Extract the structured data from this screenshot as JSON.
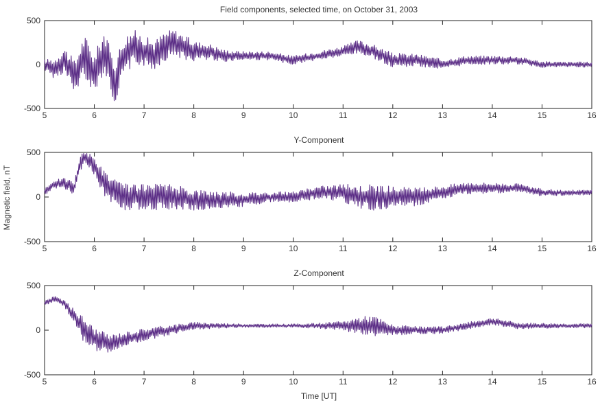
{
  "figure_title": "Field components, selected time, on October 31, 2003",
  "ylabel": "Magnetic field, nT",
  "xlabel": "Time [UT]",
  "colors": {
    "trace": "#5b2d86",
    "axes": "#222222"
  },
  "chart_data": [
    {
      "type": "line",
      "title": "Field components, selected time, on October 31, 2003",
      "xlim": [
        5,
        16
      ],
      "ylim": [
        -500,
        500
      ],
      "xticks": [
        "5",
        "6",
        "7",
        "8",
        "9",
        "10",
        "11",
        "12",
        "13",
        "14",
        "15",
        "16"
      ],
      "yticks": [
        "500",
        "0",
        "-500"
      ],
      "series": [
        {
          "x": [
            5.0,
            5.2,
            5.4,
            5.6,
            5.8,
            6.0,
            6.2,
            6.4,
            6.6,
            6.8,
            7.0,
            7.2,
            7.4,
            7.6,
            7.8,
            8.0,
            8.3,
            8.6,
            9.0,
            9.5,
            10.0,
            10.5,
            11.0,
            11.3,
            11.6,
            12.0,
            12.5,
            13.0,
            13.5,
            14.0,
            14.5,
            15.0,
            15.5,
            16.0
          ],
          "y": [
            0,
            -50,
            50,
            -150,
            100,
            -100,
            150,
            -200,
            100,
            200,
            150,
            100,
            200,
            250,
            200,
            150,
            150,
            100,
            100,
            100,
            50,
            100,
            150,
            200,
            150,
            50,
            50,
            0,
            50,
            50,
            50,
            0,
            0,
            0
          ],
          "amplitude": [
            60,
            120,
            150,
            200,
            250,
            220,
            250,
            250,
            230,
            200,
            180,
            170,
            170,
            160,
            140,
            120,
            90,
            70,
            50,
            50,
            50,
            50,
            60,
            80,
            80,
            80,
            70,
            60,
            50,
            50,
            45,
            35,
            30,
            30
          ]
        }
      ]
    },
    {
      "type": "line",
      "title": "Y-Component",
      "xlim": [
        5,
        16
      ],
      "ylim": [
        -500,
        500
      ],
      "xticks": [
        "5",
        "6",
        "7",
        "8",
        "9",
        "10",
        "11",
        "12",
        "13",
        "14",
        "15",
        "16"
      ],
      "yticks": [
        "500",
        "0",
        "-500"
      ],
      "series": [
        {
          "x": [
            5.0,
            5.2,
            5.4,
            5.6,
            5.7,
            5.8,
            6.0,
            6.2,
            6.4,
            6.6,
            7.0,
            7.5,
            8.0,
            8.5,
            9.0,
            9.5,
            10.0,
            10.5,
            11.0,
            11.3,
            11.6,
            12.0,
            12.5,
            13.0,
            13.5,
            14.0,
            14.5,
            15.0,
            15.5,
            16.0
          ],
          "y": [
            50,
            150,
            150,
            100,
            350,
            450,
            350,
            150,
            50,
            0,
            0,
            0,
            -30,
            -30,
            -30,
            0,
            0,
            50,
            50,
            0,
            0,
            0,
            0,
            50,
            100,
            100,
            100,
            50,
            50,
            50
          ],
          "amplitude": [
            40,
            50,
            60,
            80,
            80,
            80,
            100,
            150,
            150,
            150,
            140,
            150,
            120,
            100,
            80,
            60,
            60,
            70,
            100,
            130,
            150,
            120,
            100,
            80,
            70,
            60,
            50,
            40,
            30,
            30
          ]
        }
      ]
    },
    {
      "type": "line",
      "title": "Z-Component",
      "xlim": [
        5,
        16
      ],
      "ylim": [
        -500,
        500
      ],
      "xticks": [
        "5",
        "6",
        "7",
        "8",
        "9",
        "10",
        "11",
        "12",
        "13",
        "14",
        "15",
        "16"
      ],
      "yticks": [
        "500",
        "0",
        "-500"
      ],
      "series": [
        {
          "x": [
            5.0,
            5.2,
            5.4,
            5.6,
            5.8,
            6.0,
            6.3,
            6.6,
            7.0,
            7.5,
            8.0,
            8.5,
            9.0,
            9.5,
            10.0,
            10.5,
            11.0,
            11.3,
            11.6,
            12.0,
            12.5,
            13.0,
            13.5,
            14.0,
            14.5,
            15.0,
            15.5,
            16.0
          ],
          "y": [
            300,
            350,
            300,
            150,
            0,
            -100,
            -150,
            -100,
            -50,
            0,
            50,
            50,
            50,
            50,
            50,
            50,
            50,
            50,
            50,
            0,
            0,
            0,
            50,
            100,
            50,
            50,
            50,
            50
          ],
          "amplitude": [
            30,
            30,
            40,
            80,
            150,
            130,
            100,
            80,
            70,
            60,
            40,
            30,
            20,
            20,
            20,
            30,
            50,
            100,
            120,
            60,
            40,
            40,
            40,
            40,
            35,
            30,
            25,
            25
          ]
        }
      ]
    }
  ]
}
